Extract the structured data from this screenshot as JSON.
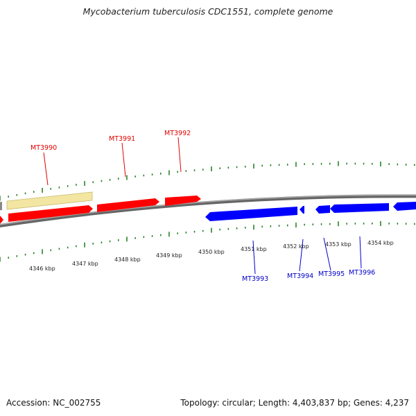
{
  "title": "Mycobacterium tuberculosis CDC1551, complete genome",
  "footer": {
    "accession": "Accession: NC_002755",
    "summary": "Topology: circular; Length: 4,403,837 bp; Genes: 4,237"
  },
  "colors": {
    "forward": "#ff0000",
    "reverse": "#0000ff",
    "other_feature": "#f2e6a2",
    "tick": "#1a7a1a",
    "backbone": "#808080"
  },
  "kbp_labels": [
    "4346 kbp",
    "4347 kbp",
    "4348 kbp",
    "4349 kbp",
    "4350 kbp",
    "4351 kbp",
    "4352 kbp",
    "4353 kbp",
    "4354 kbp"
  ],
  "forward_labels": [
    "MT3990",
    "MT3991",
    "MT3992"
  ],
  "reverse_labels": [
    "MT3993",
    "MT3994",
    "MT3995",
    "MT3996"
  ]
}
